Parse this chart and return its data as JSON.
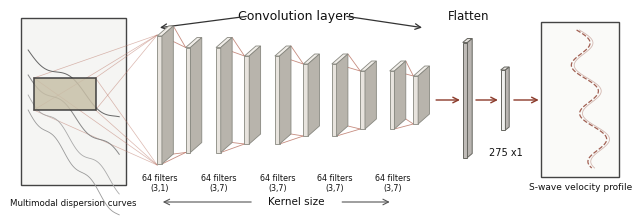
{
  "bg_color": "#ffffff",
  "face_color": "#e8e4de",
  "face_color_dark": "#d0ccc4",
  "top_color": "#f0ede8",
  "right_color": "#b8b4ac",
  "edge_color": "#888880",
  "arrow_color": "#8b3a2a",
  "connector_color": "#b87060",
  "title": "Convolution layers",
  "flatten_label": "Flatten",
  "vector_label": "275 x1",
  "input_label": "Multimodal dispersion curves",
  "output_label": "S-wave velocity profile",
  "kernel_label": "Kernel size",
  "filters": [
    "64 filters\n(3,1)",
    "64 filters\n(3,7)",
    "64 filters\n(3,7)",
    "64 filters\n(3,7)",
    "64 filters\n(3,7)"
  ]
}
